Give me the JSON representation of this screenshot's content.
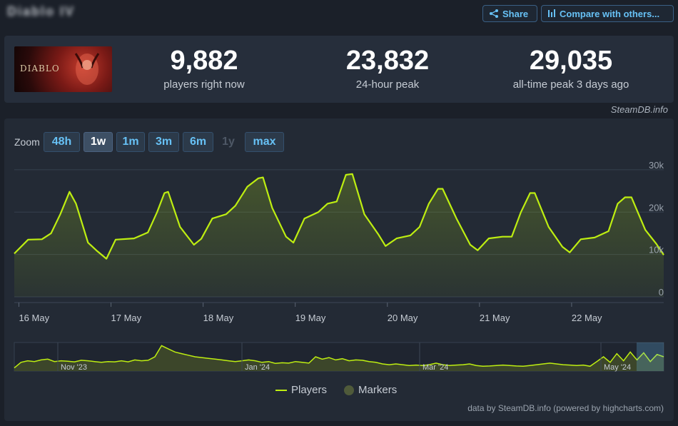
{
  "header": {
    "game_title": "Diablo IV",
    "share_label": "Share",
    "compare_label": "Compare with others..."
  },
  "stats": {
    "cover_logo": "DIABLO",
    "current": {
      "value": "9,882",
      "label": "players right now"
    },
    "peak24": {
      "value": "23,832",
      "label": "24-hour peak"
    },
    "alltime": {
      "value": "29,035",
      "label": "all-time peak 3 days ago"
    }
  },
  "chart_panel": {
    "brand": "SteamDB.info",
    "zoom_label": "Zoom",
    "zoom_options": [
      "48h",
      "1w",
      "1m",
      "3m",
      "6m",
      "1y",
      "max"
    ],
    "zoom_active": "1w",
    "zoom_disabled": [
      "1y"
    ],
    "legend": {
      "players": "Players",
      "markers": "Markers"
    },
    "credits": "data by SteamDB.info (powered by highcharts.com)"
  },
  "colors": {
    "line": "#beee11",
    "accent": "#67c1f5",
    "background": "#1b2029"
  },
  "chart_data": {
    "type": "line",
    "title": "",
    "xlabel": "",
    "ylabel": "",
    "ylim": [
      0,
      32000
    ],
    "xlim": [
      15.95,
      23.0
    ],
    "y_ticks": [
      0,
      10000,
      20000,
      30000
    ],
    "y_tick_labels": [
      "0",
      "10k",
      "20k",
      "30k"
    ],
    "x_ticks": [
      16,
      17,
      18,
      19,
      20,
      21,
      22
    ],
    "x_tick_labels": [
      "16 May",
      "17 May",
      "18 May",
      "19 May",
      "20 May",
      "21 May",
      "22 May"
    ],
    "grid": true,
    "legend_position": "bottom",
    "series": [
      {
        "name": "Players",
        "x": [
          15.95,
          16.1,
          16.25,
          16.35,
          16.45,
          16.55,
          16.62,
          16.75,
          16.85,
          16.95,
          17.05,
          17.25,
          17.4,
          17.5,
          17.58,
          17.62,
          17.75,
          17.9,
          17.98,
          18.1,
          18.25,
          18.35,
          18.48,
          18.6,
          18.65,
          18.75,
          18.9,
          18.98,
          19.1,
          19.25,
          19.35,
          19.45,
          19.55,
          19.62,
          19.75,
          19.9,
          19.98,
          20.1,
          20.25,
          20.35,
          20.45,
          20.55,
          20.6,
          20.75,
          20.9,
          20.98,
          21.1,
          21.25,
          21.35,
          21.45,
          21.55,
          21.6,
          21.75,
          21.9,
          21.98,
          22.1,
          22.25,
          22.4,
          22.5,
          22.58,
          22.65,
          22.8,
          22.92,
          23.0
        ],
        "values": [
          10200,
          13500,
          13600,
          15000,
          19500,
          24800,
          22000,
          12800,
          10800,
          9000,
          13500,
          13800,
          15200,
          20000,
          24500,
          24800,
          16500,
          12300,
          13700,
          18500,
          19500,
          21500,
          26000,
          28000,
          28200,
          21000,
          14200,
          12800,
          18500,
          20000,
          22000,
          22500,
          28800,
          29000,
          19500,
          14800,
          12000,
          13800,
          14500,
          16500,
          22000,
          25500,
          25500,
          18500,
          12300,
          11000,
          13800,
          14200,
          14200,
          20000,
          24500,
          24500,
          16500,
          11800,
          10500,
          13600,
          14000,
          15500,
          22000,
          23500,
          23500,
          15800,
          12500,
          9882
        ]
      }
    ],
    "navigator": {
      "x_tick_labels": [
        "Nov '23",
        "Jan '24",
        "Mar '24",
        "May '24"
      ],
      "values": [
        2000,
        5500,
        6500,
        6000,
        7000,
        7500,
        6000,
        6500,
        6200,
        5800,
        6800,
        6500,
        6000,
        5500,
        6000,
        5800,
        6500,
        5800,
        7000,
        6500,
        6800,
        9000,
        16000,
        14000,
        12000,
        11000,
        10000,
        9000,
        8500,
        8000,
        7500,
        7000,
        6500,
        6000,
        6500,
        7000,
        6500,
        5500,
        6000,
        4800,
        5200,
        5000,
        6000,
        5500,
        5000,
        9000,
        7500,
        8500,
        7000,
        7800,
        6500,
        7000,
        6800,
        6000,
        5500,
        4500,
        4000,
        4500,
        4000,
        3500,
        3800,
        3500,
        4000,
        5000,
        4000,
        3500,
        3800,
        4000,
        4500,
        3500,
        3000,
        3200,
        3500,
        3800,
        3500,
        3200,
        3000,
        3500,
        4000,
        4500,
        5000,
        4500,
        4000,
        3800,
        3500,
        3800,
        3000,
        6000,
        9000,
        5500,
        11000,
        6500,
        12000,
        7000,
        11500,
        6000,
        10500,
        9000
      ]
    }
  }
}
